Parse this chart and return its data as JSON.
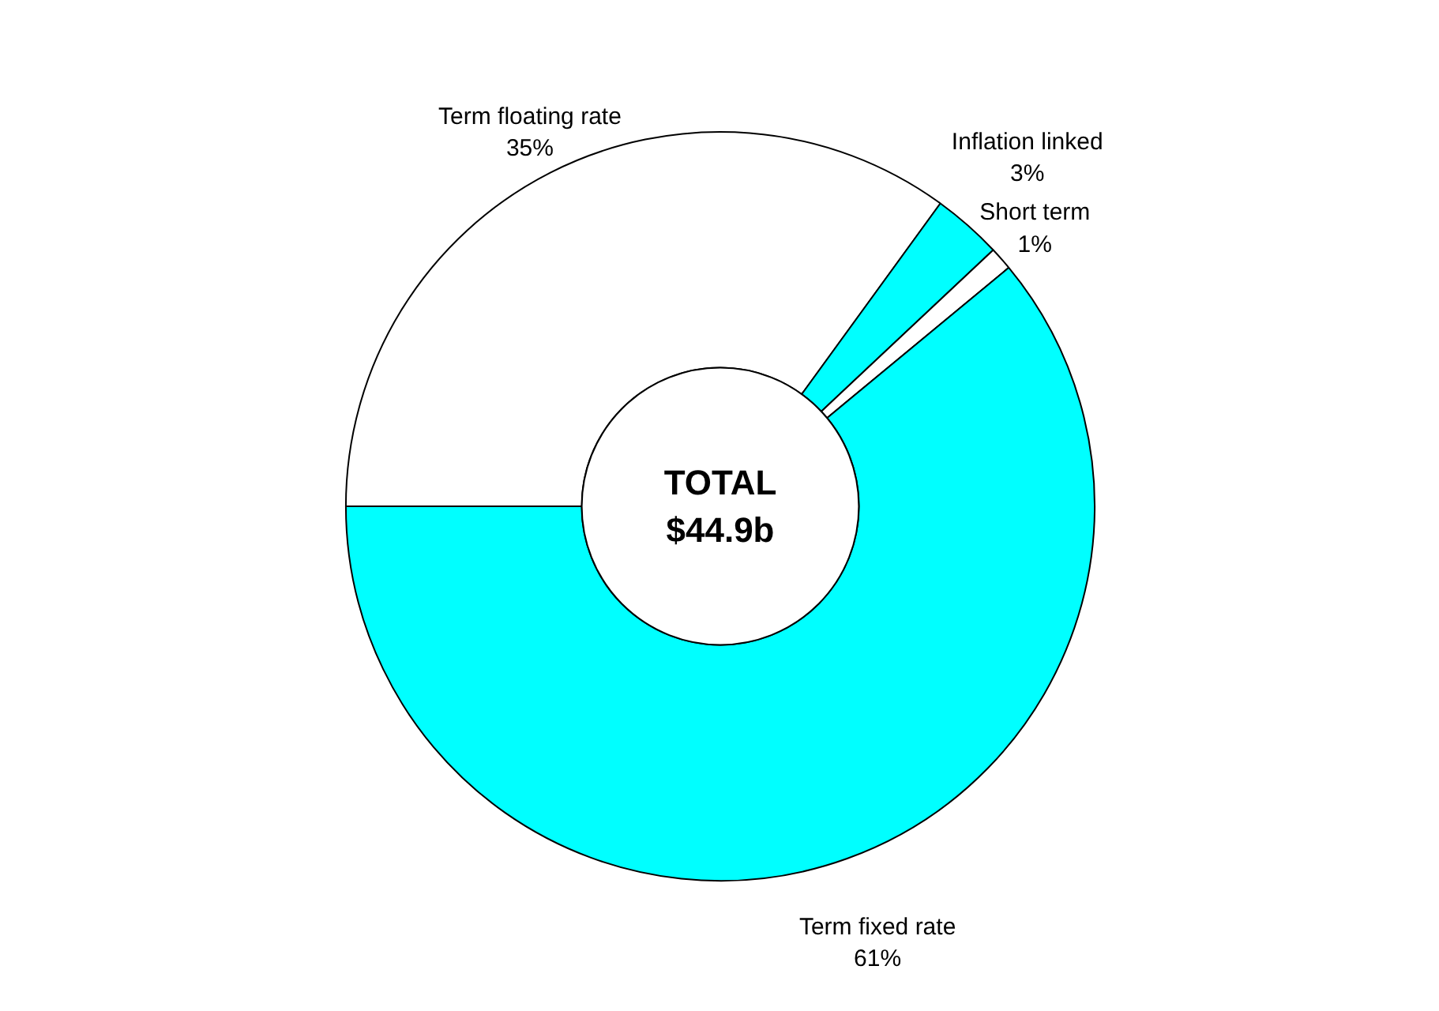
{
  "chart_data": {
    "type": "donut",
    "categories": [
      "Term floating rate",
      "Inflation linked",
      "Short term",
      "Term fixed rate"
    ],
    "values": [
      35,
      3,
      1,
      61
    ],
    "colors": [
      "#ffffff",
      "#00ffff",
      "#ffffff",
      "#00ffff"
    ],
    "value_labels": [
      "35%",
      "3%",
      "1%",
      "61%"
    ],
    "annotations": [
      "TOTAL\n$44.9b"
    ]
  }
}
